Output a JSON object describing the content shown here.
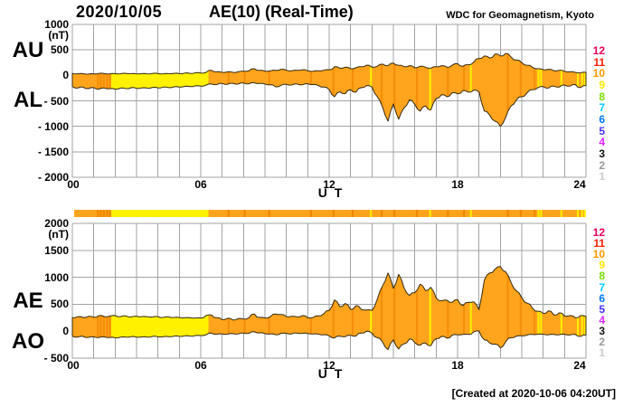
{
  "header": {
    "date": "2020/10/05",
    "title": "AE(10) (Real-Time)",
    "credit": "WDC for Geomagnetism, Kyoto"
  },
  "footer": {
    "created": "[Created at 2020-10-06 04:20UT]"
  },
  "axes": {
    "x_label": "U T",
    "x_ticks": [
      "00",
      "06",
      "12",
      "18",
      "24"
    ],
    "x_tick_hours": [
      0,
      6,
      12,
      18,
      24
    ],
    "top_panel": {
      "left_labels": [
        "AU",
        "AL"
      ],
      "unit": "(nT)",
      "y_ticks": [
        "1000",
        "500",
        "0",
        "- 500",
        "- 1000",
        "- 1500",
        "- 2000"
      ],
      "ymax": 1000,
      "ymin": -2000
    },
    "bottom_panel": {
      "left_labels": [
        "AE",
        "AO"
      ],
      "unit": "(nT)",
      "y_ticks": [
        "2000",
        "1500",
        "1000",
        "500",
        "0",
        "- 500"
      ],
      "ymax": 2000,
      "ymin": -500
    }
  },
  "station_scale": {
    "values": [
      "12",
      "11",
      "10",
      "9",
      "8",
      "7",
      "6",
      "5",
      "4",
      "3",
      "2",
      "1"
    ],
    "colors": [
      "#E8005A",
      "#FF2000",
      "#FF9900",
      "#FFE800",
      "#77DD00",
      "#00CCFF",
      "#0077FF",
      "#4433FF",
      "#DD22FF",
      "#111111",
      "#999999",
      "#CCCCCC"
    ]
  },
  "colors": {
    "fill": "#FFA41C",
    "fill_alt": "#FFF100",
    "dark_stripe": "#F08500",
    "outline": "#352A10",
    "grid": "#A3A3A3"
  },
  "chart_data": {
    "type": "area",
    "title": "AE(10) (Real-Time) 2020/10/05",
    "xlabel": "U T",
    "x_start_hour": 0,
    "x_end_hour": 24,
    "x_step_hour": 0.25,
    "legend_note": "right-side colored numbers 12..1 = number of stations; orange band = 10 stations, yellow = 9 stations",
    "regions": {
      "yellow_hours": [
        1.82,
        6.36
      ],
      "yellow_stripe_hours": [
        13.95,
        16.72,
        18.62,
        21.78,
        21.9,
        22.85,
        23.62,
        23.82,
        23.95
      ],
      "dark_stripe_hours": [
        1.2,
        1.33,
        1.47,
        1.62,
        1.75,
        7.3,
        8.05,
        9.2,
        11.15,
        12.2,
        13.1,
        14.45,
        15.05,
        16.1,
        17.55,
        18.3,
        20.35,
        20.95,
        21.6
      ]
    },
    "panels": [
      {
        "name": "AU / AL",
        "ylabel": "(nT)",
        "ylim": [
          -2000,
          1000
        ],
        "grid_step": 500,
        "series": [
          {
            "name": "AU",
            "values": [
              40,
              30,
              35,
              25,
              30,
              40,
              35,
              30,
              35,
              30,
              40,
              35,
              30,
              35,
              30,
              40,
              35,
              30,
              35,
              40,
              35,
              45,
              40,
              50,
              45,
              60,
              100,
              70,
              60,
              70,
              60,
              70,
              80,
              90,
              130,
              100,
              80,
              90,
              100,
              120,
              100,
              90,
              100,
              110,
              90,
              80,
              90,
              100,
              110,
              170,
              140,
              160,
              130,
              150,
              170,
              200,
              160,
              180,
              220,
              190,
              240,
              200,
              170,
              190,
              150,
              180,
              160,
              140,
              170,
              190,
              160,
              200,
              230,
              180,
              210,
              260,
              330,
              380,
              340,
              420,
              380,
              430,
              360,
              300,
              250,
              200,
              160,
              130,
              110,
              120,
              90,
              100,
              80,
              70,
              60,
              50,
              60
            ]
          },
          {
            "name": "AL",
            "values": [
              -220,
              -250,
              -230,
              -260,
              -240,
              -270,
              -250,
              -260,
              -270,
              -250,
              -260,
              -240,
              -255,
              -245,
              -250,
              -235,
              -245,
              -230,
              -240,
              -225,
              -230,
              -215,
              -220,
              -205,
              -210,
              -190,
              -170,
              -180,
              -160,
              -175,
              -155,
              -170,
              -150,
              -165,
              -145,
              -160,
              -170,
              -185,
              -225,
              -195,
              -175,
              -190,
              -170,
              -185,
              -165,
              -180,
              -200,
              -230,
              -280,
              -420,
              -320,
              -360,
              -280,
              -330,
              -240,
              -200,
              -230,
              -420,
              -630,
              -900,
              -560,
              -860,
              -640,
              -480,
              -570,
              -700,
              -600,
              -680,
              -450,
              -380,
              -420,
              -340,
              -360,
              -300,
              -330,
              -290,
              -320,
              -700,
              -780,
              -900,
              -1000,
              -820,
              -600,
              -480,
              -420,
              -340,
              -280,
              -240,
              -220,
              -250,
              -210,
              -230,
              -190,
              -210,
              -180,
              -240,
              -200
            ]
          }
        ]
      },
      {
        "name": "AE / AO",
        "ylabel": "(nT)",
        "ylim": [
          -500,
          2000
        ],
        "grid_step": 500,
        "series": [
          {
            "name": "AE",
            "values": [
              250,
              270,
              255,
              275,
              260,
              290,
              270,
              280,
              290,
              270,
              285,
              265,
              275,
              270,
              270,
              265,
              270,
              255,
              265,
              255,
              255,
              250,
              250,
              245,
              245,
              290,
              300,
              250,
              215,
              240,
              210,
              235,
              225,
              250,
              320,
              255,
              245,
              270,
              320,
              310,
              270,
              275,
              265,
              290,
              250,
              255,
              285,
              325,
              385,
              580,
              455,
              515,
              405,
              475,
              405,
              395,
              385,
              595,
              845,
              1080,
              795,
              1055,
              805,
              665,
              715,
              875,
              755,
              815,
              615,
              565,
              575,
              535,
              585,
              475,
              535,
              545,
              400,
              950,
              1080,
              1150,
              1200,
              1100,
              900,
              750,
              620,
              520,
              430,
              370,
              330,
              380,
              300,
              340,
              280,
              290,
              250,
              290,
              270
            ]
          },
          {
            "name": "AO",
            "values": [
              -90,
              -110,
              -95,
              -115,
              -105,
              -115,
              -105,
              -115,
              -120,
              -110,
              -110,
              -100,
              -110,
              -105,
              -110,
              -95,
              -105,
              -100,
              -100,
              -90,
              -95,
              -85,
              -90,
              -80,
              -80,
              -65,
              -35,
              -55,
              -50,
              -55,
              -45,
              -50,
              -35,
              -40,
              -10,
              -30,
              -45,
              -50,
              -65,
              -40,
              -40,
              -50,
              -35,
              -40,
              -40,
              -50,
              -55,
              -65,
              -85,
              -125,
              -90,
              -100,
              -75,
              -90,
              -35,
              0,
              -35,
              -120,
              -205,
              -340,
              -160,
              -330,
              -235,
              -145,
              -210,
              -260,
              -220,
              -270,
              -140,
              -95,
              -130,
              -70,
              -65,
              -60,
              -60,
              -15,
              5,
              -160,
              -220,
              -240,
              -310,
              -195,
              -120,
              -90,
              -85,
              -70,
              -60,
              -55,
              -55,
              -65,
              -60,
              -65,
              -55,
              -70,
              -60,
              -95,
              -70
            ]
          }
        ]
      }
    ]
  }
}
